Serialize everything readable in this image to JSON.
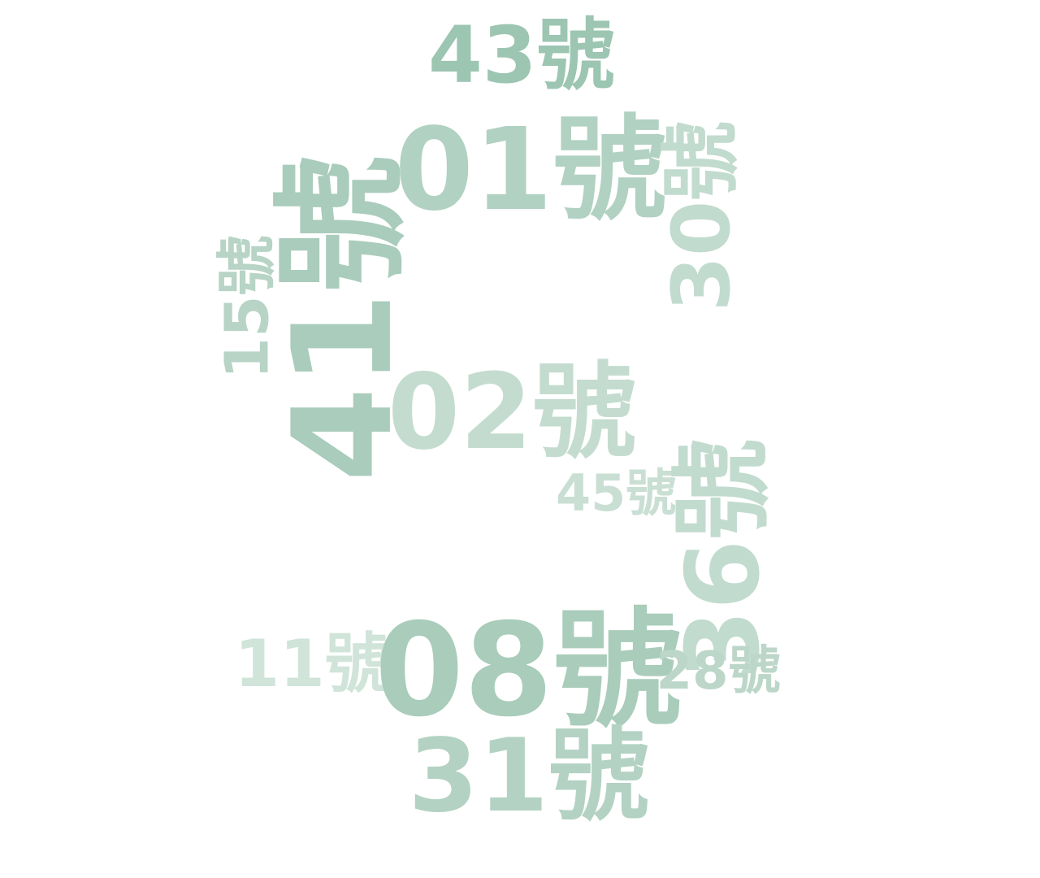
{
  "words": [
    {
      "text": "43號",
      "color": "#9cc5b2"
    },
    {
      "text": "01號",
      "color": "#b1d1c2"
    },
    {
      "text": "30號",
      "color": "#c2dbcf"
    },
    {
      "text": "41號",
      "color": "#a9ccbc"
    },
    {
      "text": "15號",
      "color": "#b7d4c6"
    },
    {
      "text": "02號",
      "color": "#c4dccf"
    },
    {
      "text": "45號",
      "color": "#c9dfd4"
    },
    {
      "text": "36號",
      "color": "#c2dbcf"
    },
    {
      "text": "11號",
      "color": "#d0e4da"
    },
    {
      "text": "08號",
      "color": "#a9ccbb"
    },
    {
      "text": "28號",
      "color": "#bcd7c9"
    },
    {
      "text": "31號",
      "color": "#b3d2c3"
    }
  ]
}
